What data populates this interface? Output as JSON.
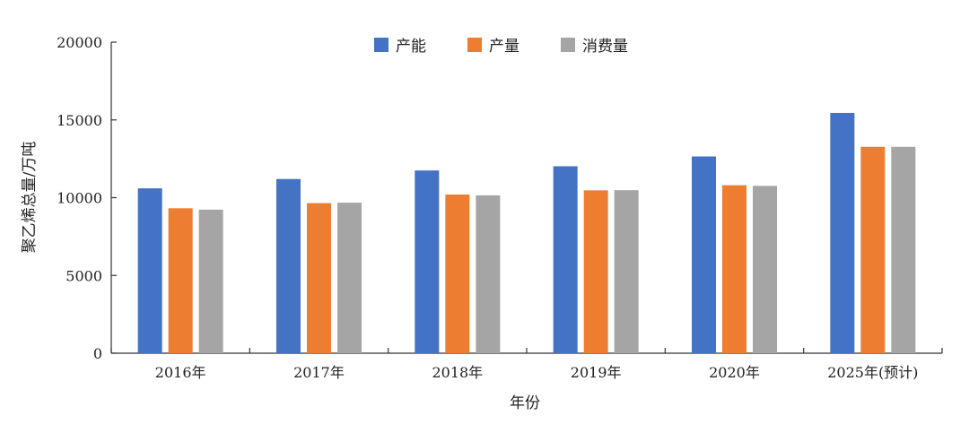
{
  "chart_data": {
    "type": "bar",
    "title": "",
    "xlabel": "年份",
    "ylabel": "聚乙烯总量/万吨",
    "categories": [
      "2016年",
      "2017年",
      "2018年",
      "2019年",
      "2020年",
      "2025年(预计)"
    ],
    "series": [
      {
        "name": "产能",
        "color": "#4472C4",
        "values": [
          10600,
          11200,
          11750,
          12020,
          12650,
          15450
        ]
      },
      {
        "name": "产量",
        "color": "#ED7D31",
        "values": [
          9320,
          9650,
          10200,
          10470,
          10800,
          13270
        ]
      },
      {
        "name": "消费量",
        "color": "#A5A5A5",
        "values": [
          9230,
          9680,
          10150,
          10480,
          10760,
          13270
        ]
      }
    ],
    "ylim": [
      0,
      20000
    ],
    "yticks": [
      0,
      5000,
      10000,
      15000,
      20000
    ],
    "legend_position": "top-center",
    "grid": false
  }
}
